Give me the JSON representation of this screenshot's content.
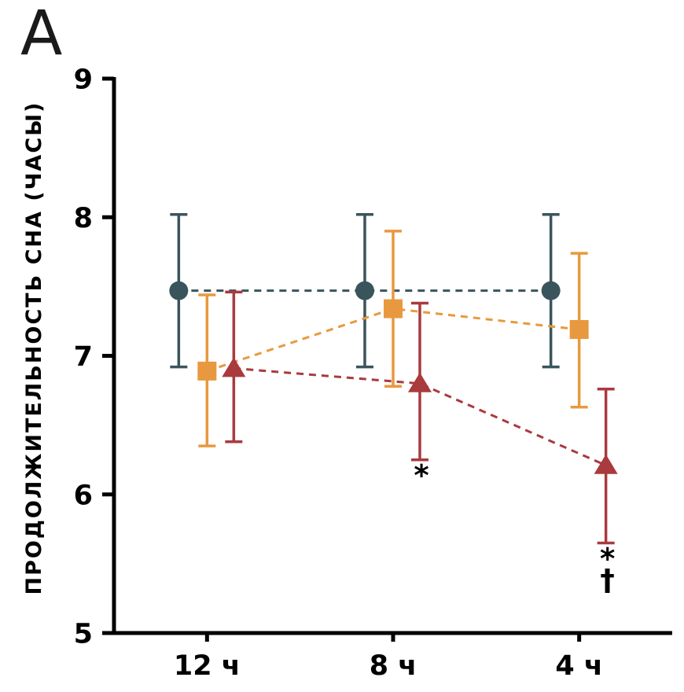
{
  "panel_label": "A",
  "chart_data": {
    "type": "line",
    "title": "",
    "xlabel": "",
    "ylabel": "ПРОДОЛЖИТЕЛЬНОСТЬ СНА (ЧАСЫ)",
    "categories": [
      "12 ч",
      "8 ч",
      "4 ч"
    ],
    "ylim": [
      5,
      9
    ],
    "yticks": [
      5,
      6,
      7,
      8,
      9
    ],
    "grid": false,
    "legend": "none",
    "line_style": "dashed",
    "series": [
      {
        "name": "circle-group",
        "marker": "circle",
        "color": "#3a545c",
        "values": [
          7.47,
          7.47,
          7.47
        ],
        "err_up": [
          0.55,
          0.55,
          0.55
        ],
        "err_down": [
          0.55,
          0.55,
          0.55
        ]
      },
      {
        "name": "square-group",
        "marker": "square",
        "color": "#e8993f",
        "values": [
          6.89,
          7.34,
          7.19
        ],
        "err_up": [
          0.55,
          0.56,
          0.55
        ],
        "err_down": [
          0.54,
          0.56,
          0.56
        ]
      },
      {
        "name": "triangle-group",
        "marker": "triangle",
        "color": "#a93a3e",
        "values": [
          6.91,
          6.8,
          6.21
        ],
        "err_up": [
          0.55,
          0.58,
          0.55
        ],
        "err_down": [
          0.53,
          0.55,
          0.56
        ]
      }
    ],
    "annotations": [
      {
        "category_index": 1,
        "series_index": 2,
        "symbols": [
          "*"
        ]
      },
      {
        "category_index": 2,
        "series_index": 2,
        "symbols": [
          "*",
          "†"
        ]
      }
    ]
  }
}
